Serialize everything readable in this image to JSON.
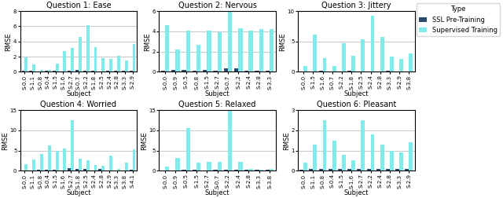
{
  "chart_data": [
    {
      "type": "bar",
      "title": "Question 1: Ease",
      "xlabel": "Subject",
      "ylabel": "RMSE",
      "categories": [
        "S-0.0",
        "S-1.1",
        "S-0.8",
        "S-0.4",
        "S-1.5",
        "S-1.6",
        "S-2.7",
        "S-0.7",
        "S-2.2",
        "S-1.8",
        "S-2.5",
        "S-2.4",
        "S-2.8",
        "S-3.3",
        "S-2.9"
      ],
      "series": [
        {
          "name": "SSL Pre-Training",
          "color": "#2c4a6e",
          "values": [
            0.12,
            0.1,
            0.05,
            0.15,
            0.1,
            0.08,
            0.12,
            0.28,
            0.15,
            0.12,
            0.08,
            0.13,
            0.12,
            0.1,
            0.12
          ]
        },
        {
          "name": "Supervised Training",
          "color": "#7eecea",
          "values": [
            1.9,
            1.0,
            0.2,
            0.25,
            1.1,
            2.7,
            3.1,
            4.6,
            6.1,
            3.2,
            1.75,
            1.65,
            2.15,
            1.5,
            3.7
          ]
        }
      ],
      "ylim": [
        0,
        8
      ],
      "yticks": [
        0,
        2,
        4,
        6,
        8
      ],
      "grid": true
    },
    {
      "type": "bar",
      "title": "Question 2: Nervous",
      "xlabel": "Subject",
      "ylabel": "RMSE",
      "categories": [
        "S-0.0",
        "S-0.9",
        "S-0.5",
        "S-0.8",
        "S-1.5",
        "S-2.7",
        "S-0.7",
        "S-2.2",
        "S-2.4",
        "S-2.8",
        "S-3.3"
      ],
      "series": [
        {
          "name": "SSL Pre-Training",
          "color": "#2c4a6e",
          "values": [
            0.08,
            0.15,
            0.2,
            0.1,
            0.2,
            0.12,
            0.35,
            0.32,
            0.1,
            0.12,
            0.1
          ]
        },
        {
          "name": "Supervised Training",
          "color": "#7eecea",
          "values": [
            4.6,
            2.2,
            4.1,
            2.7,
            4.1,
            3.9,
            5.9,
            4.3,
            4.1,
            4.2,
            4.2
          ]
        }
      ],
      "ylim": [
        0,
        6
      ],
      "yticks": [
        0,
        2,
        4,
        6
      ],
      "grid": true
    },
    {
      "type": "bar",
      "title": "Question 3: Jittery",
      "xlabel": "Subject",
      "ylabel": "RMSE",
      "categories": [
        "S-0.0",
        "S-1.5",
        "S-1.6",
        "S-0.7",
        "S-2.2",
        "S-1.8",
        "S-2.5",
        "S-2.4",
        "S-2.8",
        "S-3.3",
        "S-2.9",
        "S-3.8"
      ],
      "series": [
        {
          "name": "SSL Pre-Training",
          "color": "#2c4a6e",
          "values": [
            0.1,
            0.1,
            0.12,
            0.1,
            0.08,
            0.12,
            0.1,
            0.08,
            0.1,
            0.12,
            0.1,
            0.08
          ]
        },
        {
          "name": "Supervised Training",
          "color": "#7eecea",
          "values": [
            1.0,
            6.1,
            2.2,
            0.9,
            4.7,
            2.6,
            5.3,
            9.3,
            5.8,
            2.5,
            2.1,
            3.0
          ]
        }
      ],
      "ylim": [
        0,
        10
      ],
      "yticks": [
        0,
        5,
        10
      ],
      "grid": true,
      "legend": "upper right",
      "legend_title": "Type"
    },
    {
      "type": "bar",
      "title": "Question 4: Worried",
      "xlabel": "Subject",
      "ylabel": "RMSE",
      "categories": [
        "S-0.0",
        "S-1.1",
        "S-0.8",
        "S-0.4",
        "S-1.5",
        "S-1.6",
        "S-2.7",
        "S-1.8",
        "S-2.5",
        "S-2.4",
        "S-2.8",
        "S-2.9",
        "S-3.3",
        "S-3.8",
        "S-4.1"
      ],
      "series": [
        {
          "name": "SSL Pre-Training",
          "color": "#2c4a6e",
          "values": [
            0.1,
            0.1,
            0.25,
            0.2,
            0.2,
            0.15,
            0.6,
            0.4,
            0.4,
            0.1,
            0.5,
            0.1,
            0.15,
            0.1,
            0.3
          ]
        },
        {
          "name": "Supervised Training",
          "color": "#7eecea",
          "values": [
            1.6,
            2.7,
            4.1,
            6.2,
            4.9,
            5.6,
            12.5,
            2.9,
            2.5,
            1.5,
            1.2,
            3.8,
            0.5,
            2.1,
            5.3
          ]
        }
      ],
      "ylim": [
        0,
        15
      ],
      "yticks": [
        0,
        5,
        10,
        15
      ],
      "grid": true
    },
    {
      "type": "bar",
      "title": "Question 5: Relaxed",
      "xlabel": "Subject",
      "ylabel": "RMSE",
      "categories": [
        "S-0.0",
        "S-0.9",
        "S-0.5",
        "S-1.5",
        "S-2.7",
        "S-0.7",
        "S-2.2",
        "S-2.4",
        "S-2.8",
        "S-3.3",
        "S-3.8"
      ],
      "series": [
        {
          "name": "SSL Pre-Training",
          "color": "#2c4a6e",
          "values": [
            0.1,
            0.15,
            0.35,
            0.2,
            0.1,
            0.2,
            0.3,
            0.2,
            0.2,
            0.25,
            0.3
          ]
        },
        {
          "name": "Supervised Training",
          "color": "#7eecea",
          "values": [
            1.0,
            3.2,
            10.5,
            2.0,
            2.2,
            2.2,
            14.8,
            2.2,
            0.5,
            0.3,
            0.4
          ]
        }
      ],
      "ylim": [
        0,
        15
      ],
      "yticks": [
        0,
        5,
        10,
        15
      ],
      "grid": true
    },
    {
      "type": "bar",
      "title": "Question 6: Pleasant",
      "xlabel": "Subject",
      "ylabel": "RMSE",
      "categories": [
        "S-0.0",
        "S-1.1",
        "S-0.8",
        "S-0.4",
        "S-1.5",
        "S-1.6",
        "S-2.7",
        "S-2.2",
        "S-2.4",
        "S-2.8",
        "S-3.3",
        "S-2.9"
      ],
      "series": [
        {
          "name": "SSL Pre-Training",
          "color": "#2c4a6e",
          "values": [
            0.05,
            0.1,
            0.1,
            0.08,
            0.08,
            0.1,
            0.1,
            0.1,
            0.1,
            0.1,
            0.08,
            0.1
          ]
        },
        {
          "name": "Supervised Training",
          "color": "#7eecea",
          "values": [
            0.4,
            1.3,
            2.5,
            1.5,
            0.8,
            0.5,
            2.5,
            1.8,
            1.3,
            1.0,
            0.9,
            1.4
          ]
        }
      ],
      "ylim": [
        0,
        3
      ],
      "yticks": [
        0,
        1,
        2,
        3
      ],
      "grid": true
    }
  ]
}
